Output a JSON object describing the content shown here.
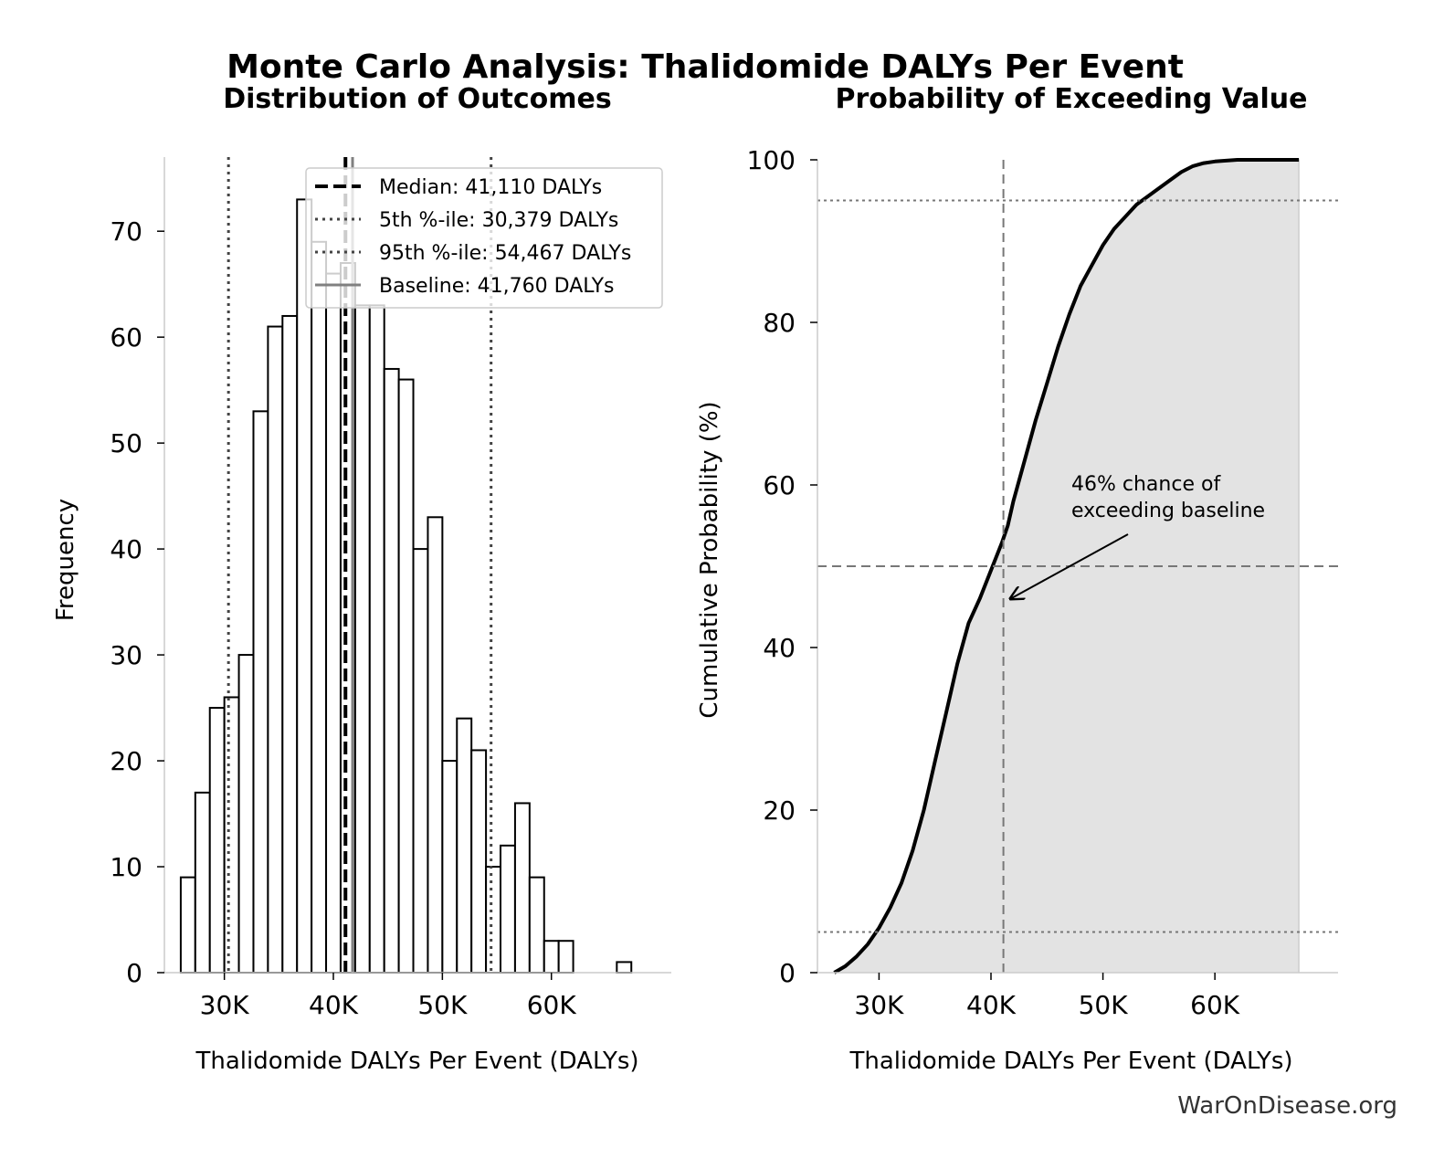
{
  "title": "Monte Carlo Analysis: Thalidomide DALYs Per Event",
  "watermark": "WarOnDisease.org",
  "colors": {
    "bar_fill": "#ffffff",
    "bar_edge": "#000000",
    "median": "#000000",
    "percentile": "#444444",
    "baseline": "#808080",
    "cdf_fill": "#e3e3e3",
    "cdf_line": "#000000"
  },
  "chart_data": [
    {
      "type": "bar",
      "subtitle": "Distribution of Outcomes",
      "xlabel": "Thalidomide DALYs Per Event (DALYs)",
      "ylabel": "Frequency",
      "xlim": [
        24500,
        71000
      ],
      "ylim": [
        0,
        77
      ],
      "xticks": [
        30000,
        40000,
        50000,
        60000
      ],
      "xtick_labels": [
        "30K",
        "40K",
        "50K",
        "60K"
      ],
      "yticks": [
        0,
        10,
        20,
        30,
        40,
        50,
        60,
        70
      ],
      "grid": false,
      "legend_position": "top-right",
      "bins": [
        {
          "left": 26000,
          "right": 27333,
          "value": 9
        },
        {
          "left": 27333,
          "right": 28667,
          "value": 17
        },
        {
          "left": 28667,
          "right": 30000,
          "value": 25
        },
        {
          "left": 30000,
          "right": 31333,
          "value": 26
        },
        {
          "left": 31333,
          "right": 32667,
          "value": 30
        },
        {
          "left": 32667,
          "right": 34000,
          "value": 53
        },
        {
          "left": 34000,
          "right": 35333,
          "value": 61
        },
        {
          "left": 35333,
          "right": 36667,
          "value": 62
        },
        {
          "left": 36667,
          "right": 38000,
          "value": 73
        },
        {
          "left": 38000,
          "right": 39333,
          "value": 69
        },
        {
          "left": 39333,
          "right": 40667,
          "value": 66
        },
        {
          "left": 40667,
          "right": 42000,
          "value": 67
        },
        {
          "left": 42000,
          "right": 43333,
          "value": 63
        },
        {
          "left": 43333,
          "right": 44667,
          "value": 63
        },
        {
          "left": 44667,
          "right": 46000,
          "value": 57
        },
        {
          "left": 46000,
          "right": 47333,
          "value": 56
        },
        {
          "left": 47333,
          "right": 48667,
          "value": 40
        },
        {
          "left": 48667,
          "right": 50000,
          "value": 43
        },
        {
          "left": 50000,
          "right": 51333,
          "value": 20
        },
        {
          "left": 51333,
          "right": 52667,
          "value": 24
        },
        {
          "left": 52667,
          "right": 54000,
          "value": 21
        },
        {
          "left": 54000,
          "right": 55333,
          "value": 10
        },
        {
          "left": 55333,
          "right": 56667,
          "value": 12
        },
        {
          "left": 56667,
          "right": 58000,
          "value": 16
        },
        {
          "left": 58000,
          "right": 59333,
          "value": 9
        },
        {
          "left": 59333,
          "right": 60667,
          "value": 3
        },
        {
          "left": 60667,
          "right": 62000,
          "value": 3
        },
        {
          "left": 62000,
          "right": 63333,
          "value": 0
        },
        {
          "left": 63333,
          "right": 64667,
          "value": 0
        },
        {
          "left": 64667,
          "right": 66000,
          "value": 0
        },
        {
          "left": 66000,
          "right": 67333,
          "value": 1
        }
      ],
      "reference_lines": [
        {
          "name": "Median: 41,110 DALYs",
          "value": 41110,
          "style": "dashed",
          "color": "#000000"
        },
        {
          "name": "5th %-ile: 30,379 DALYs",
          "value": 30379,
          "style": "dotted",
          "color": "#444444"
        },
        {
          "name": "95th %-ile: 54,467 DALYs",
          "value": 54467,
          "style": "dotted",
          "color": "#444444"
        },
        {
          "name": "Baseline: 41,760 DALYs",
          "value": 41760,
          "style": "solid",
          "color": "#808080"
        }
      ]
    },
    {
      "type": "area",
      "subtitle": "Probability of Exceeding Value",
      "xlabel": "Thalidomide DALYs Per Event (DALYs)",
      "ylabel": "Cumulative Probability (%)",
      "xlim": [
        24500,
        71000
      ],
      "ylim": [
        0,
        100
      ],
      "xticks": [
        30000,
        40000,
        50000,
        60000
      ],
      "xtick_labels": [
        "30K",
        "40K",
        "50K",
        "60K"
      ],
      "yticks": [
        0,
        20,
        40,
        60,
        80,
        100
      ],
      "grid": false,
      "x": [
        26000,
        27000,
        28000,
        29000,
        30000,
        31000,
        32000,
        33000,
        34000,
        35000,
        36000,
        37000,
        38000,
        39000,
        40000,
        41000,
        41500,
        42000,
        43000,
        44000,
        45000,
        46000,
        47000,
        48000,
        49000,
        50000,
        51000,
        52000,
        53000,
        54000,
        55000,
        56000,
        57000,
        58000,
        59000,
        60000,
        61000,
        62000,
        64000,
        67500
      ],
      "y": [
        0,
        0.8,
        2,
        3.5,
        5.5,
        8,
        11,
        15,
        20,
        26,
        32,
        38,
        43,
        46,
        49.5,
        53,
        55,
        58,
        63,
        68,
        72.5,
        77,
        81,
        84.5,
        87,
        89.5,
        91.5,
        93,
        94.5,
        95.5,
        96.5,
        97.5,
        98.5,
        99.2,
        99.6,
        99.8,
        99.9,
        100,
        100,
        100
      ],
      "reference_lines": [
        {
          "orientation": "vertical",
          "value": 41110,
          "style": "dashed"
        },
        {
          "orientation": "horizontal",
          "value": 50,
          "style": "dashed"
        },
        {
          "orientation": "horizontal",
          "value": 5,
          "style": "dotted"
        },
        {
          "orientation": "horizontal",
          "value": 95,
          "style": "dotted"
        }
      ],
      "annotation": {
        "lines": [
          "46% chance of",
          "exceeding baseline"
        ],
        "target": [
          41500,
          46
        ]
      }
    }
  ]
}
